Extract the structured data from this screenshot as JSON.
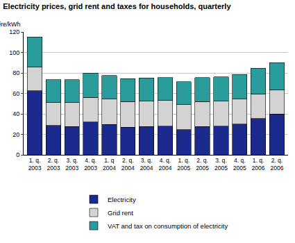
{
  "chart_data": {
    "type": "bar",
    "title": "Electricity prices, grid rent and taxes for households, quarterly",
    "ylabel": "Øre/kWh",
    "categories": [
      "1. q. 2003",
      "2. q. 2003",
      "3. q. 2003",
      "4. q. 2003",
      "1. q 2004",
      "2. q. 2004",
      "3. q. 2004",
      "4. q. 2004",
      "1. q. 2005",
      "2. q. 2005",
      "3. q. 2005",
      "4. q. 2005",
      "1. q. 2006",
      "2. q. 2006"
    ],
    "series": [
      {
        "name": "Electricity",
        "color": "#1b2a8c",
        "values": [
          62.5,
          28.5,
          27.5,
          32,
          29.5,
          27,
          27.5,
          28,
          24.5,
          27.5,
          28,
          30,
          35.5,
          40
        ]
      },
      {
        "name": "Grid rent",
        "color": "#d3d3d3",
        "values": [
          23,
          23,
          24,
          24,
          25,
          25,
          25,
          25,
          24.5,
          24.5,
          24.5,
          24.5,
          24,
          23.5
        ]
      },
      {
        "name": "VAT and tax on consumption of electricity",
        "color": "#2a9c9c",
        "values": [
          29.5,
          22,
          22,
          24,
          23,
          22.5,
          22.5,
          22.5,
          22.5,
          23.5,
          23.5,
          24,
          25,
          26.5
        ]
      }
    ],
    "stacked": true,
    "ylim": [
      0,
      120
    ],
    "yticks": [
      0,
      20,
      40,
      60,
      80,
      100,
      120
    ],
    "grid": true,
    "legend": "bottom"
  }
}
